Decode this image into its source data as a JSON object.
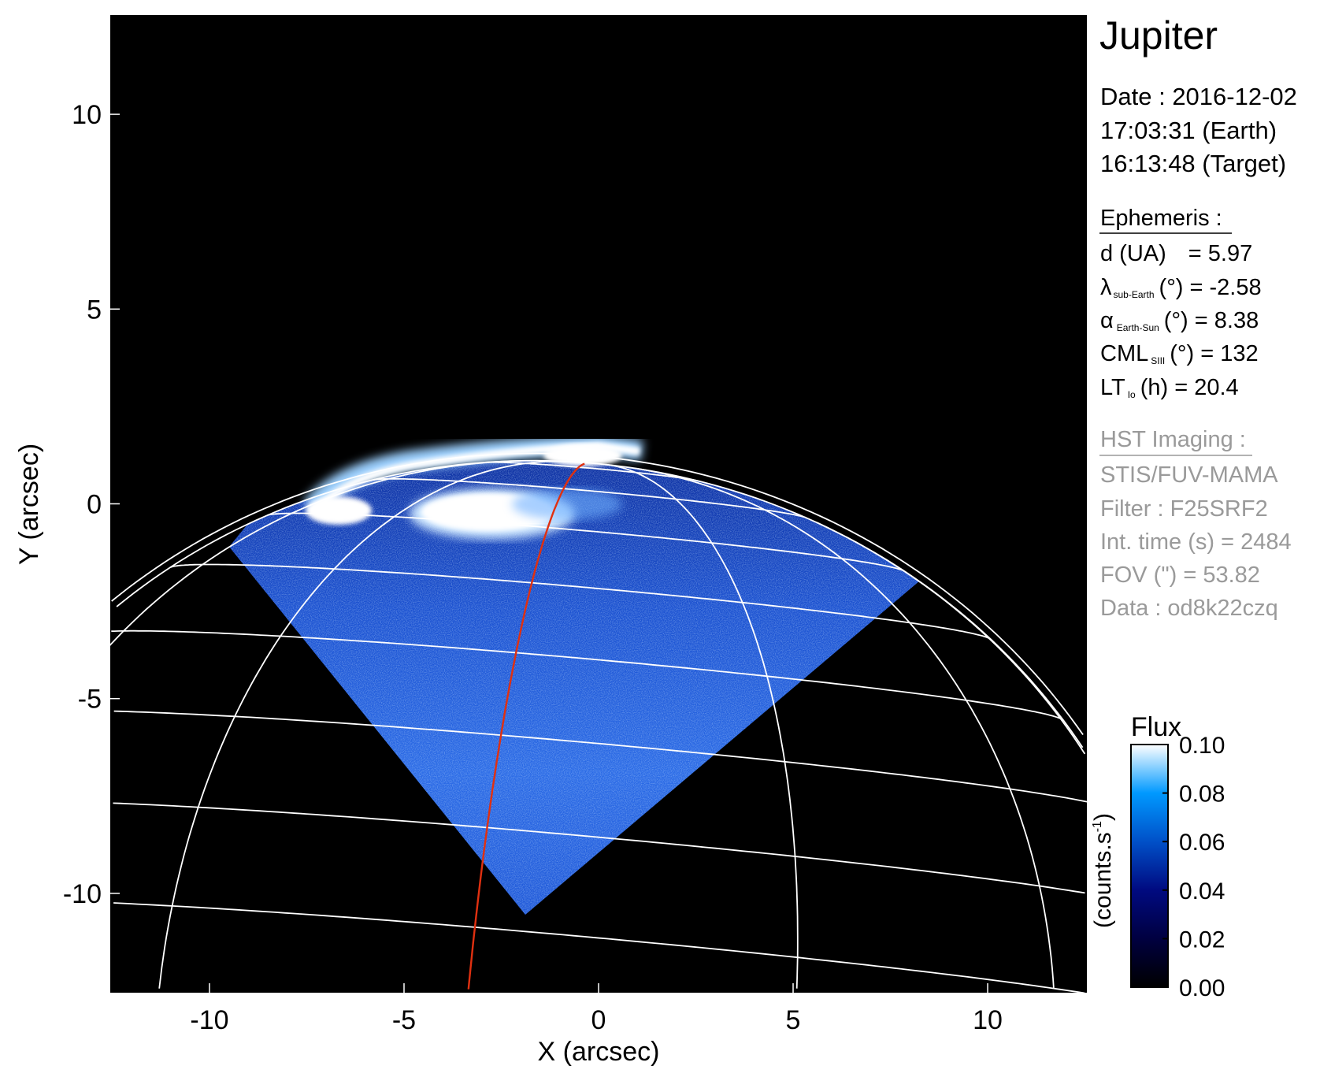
{
  "chart_data": {
    "type": "heatmap",
    "xlabel": "X (arcsec)",
    "ylabel": "Y (arcsec)",
    "xlim": [
      -12.55,
      12.55
    ],
    "ylim": [
      -12.55,
      12.55
    ],
    "xticks": [
      -10,
      -5,
      0,
      5,
      10
    ],
    "yticks": [
      -10,
      -5,
      0,
      5,
      10
    ],
    "xtick_labels": [
      "-10",
      "-5",
      "0",
      "5",
      "10"
    ],
    "ytick_labels": [
      "-10",
      "-5",
      "0",
      "5",
      "10"
    ],
    "background": "#000000",
    "grid_color": "#ffffff",
    "highlight_meridian_color": "#e03010",
    "colorbar": {
      "title": "Flux",
      "label": "(counts.s",
      "label_sup": "-1",
      "label_close": ")",
      "range": [
        0.0,
        0.1
      ],
      "ticks": [
        0.0,
        0.02,
        0.04,
        0.06,
        0.08,
        0.1
      ],
      "tick_labels": [
        "0.00",
        "0.02",
        "0.04",
        "0.06",
        "0.08",
        "0.10"
      ],
      "colors": [
        "#000000",
        "#000040",
        "#000a80",
        "#0050c8",
        "#0099ff",
        "#ffffff"
      ]
    }
  },
  "info": {
    "title": "Jupiter",
    "date": "Date : 2016-12-02",
    "time_earth": "17:03:31 (Earth)",
    "time_target": "16:13:48 (Target)",
    "ephemeris_header": "Ephemeris :",
    "ephemeris": {
      "d": {
        "label": "d (UA)",
        "value": "= 5.97"
      },
      "lat": {
        "symbol": "λ",
        "sub": "sub-Earth",
        "rest": "(°) = -2.58"
      },
      "phase": {
        "symbol": "α",
        "sub": "Earth-Sun",
        "rest": "(°) = 8.38"
      },
      "cml": {
        "symbol": "CML",
        "sub": "SIII",
        "rest": "(°) = 132"
      },
      "lt": {
        "symbol": "LT",
        "sub": "Io",
        "rest": "(h) = 20.4"
      }
    },
    "hst_header": "HST Imaging :",
    "hst": [
      "STIS/FUV-MAMA",
      "Filter : F25SRF2",
      "Int. time (s) = 2484",
      "FOV (\") = 53.82",
      "Data : od8k22czq"
    ]
  }
}
